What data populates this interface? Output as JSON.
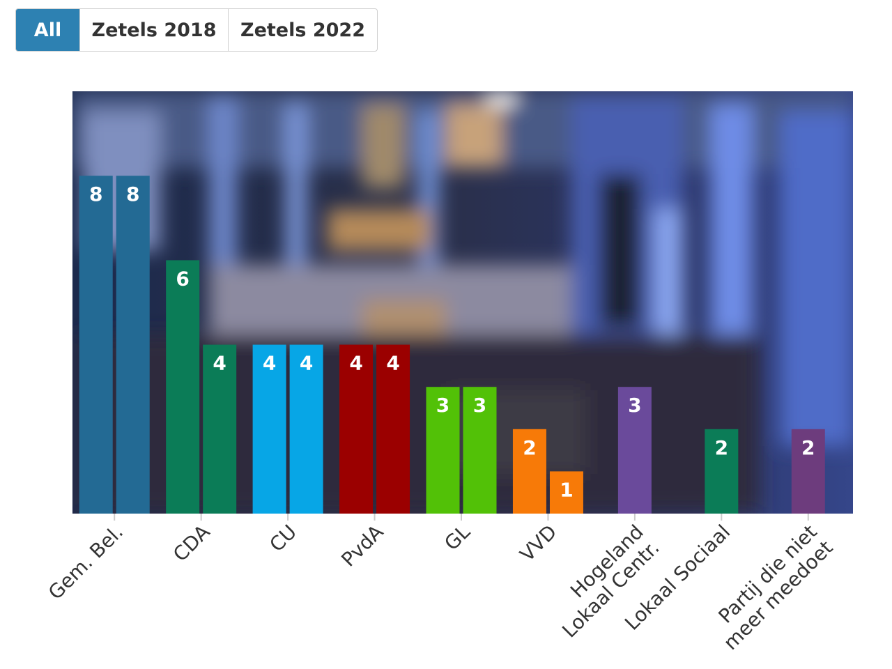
{
  "tabs": [
    {
      "label": "All",
      "active": true
    },
    {
      "label": "Zetels 2018",
      "active": false
    },
    {
      "label": "Zetels 2022",
      "active": false
    }
  ],
  "chart_data": {
    "type": "bar",
    "categories": [
      [
        "Gem. Bel."
      ],
      [
        "CDA"
      ],
      [
        "CU"
      ],
      [
        "PvdA"
      ],
      [
        "GL"
      ],
      [
        "VVD"
      ],
      [
        "Hogeland",
        "Lokaal Centr."
      ],
      [
        "Lokaal Sociaal"
      ],
      [
        "Partij die niet",
        "meer meedoet"
      ]
    ],
    "series": [
      {
        "values": [
          8,
          6,
          4,
          4,
          3,
          2,
          null,
          null,
          2
        ]
      },
      {
        "values": [
          8,
          4,
          4,
          4,
          3,
          1,
          3,
          2,
          null
        ]
      }
    ],
    "colors": [
      "#236a94",
      "#0b7c57",
      "#07a6e6",
      "#9b0000",
      "#52c107",
      "#f77a08",
      "#6a4a9b",
      "#0b7c57",
      "#6d3c7d"
    ],
    "ylim": [
      0,
      10
    ],
    "background": "blurred-tv-studio-photo",
    "grid": false,
    "legend": "none"
  }
}
